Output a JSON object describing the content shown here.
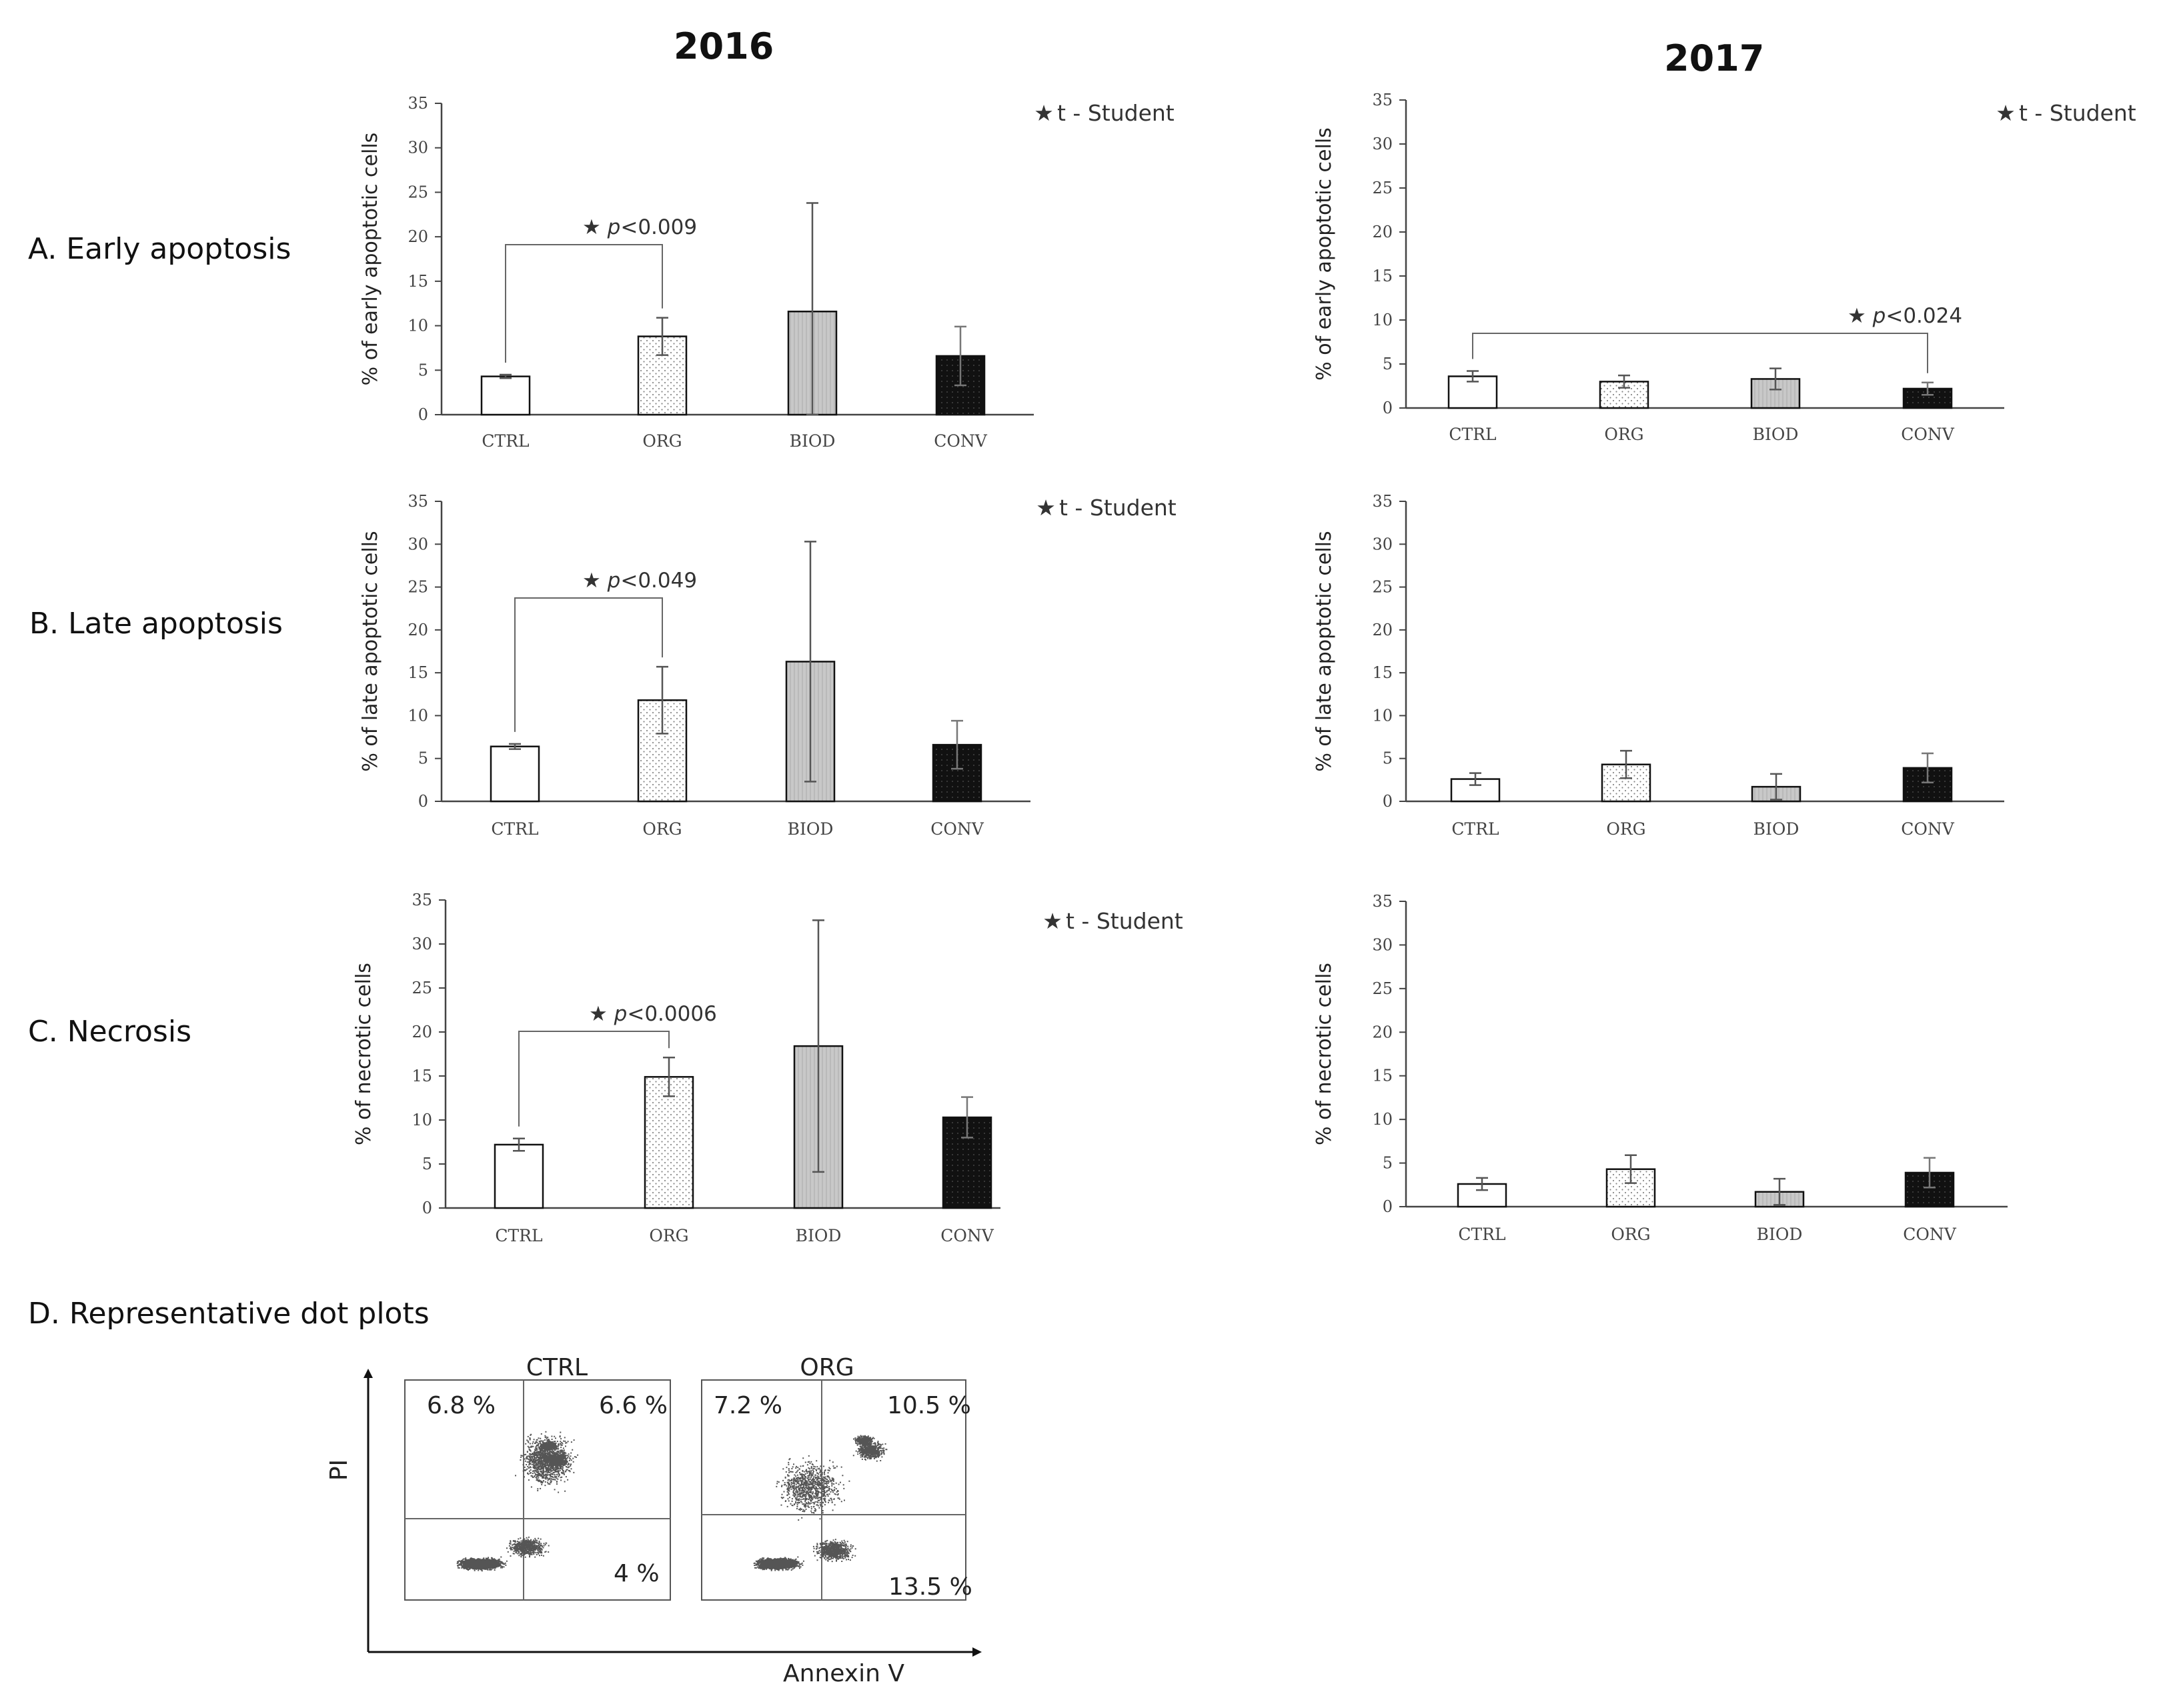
{
  "years": [
    "2016",
    "2017"
  ],
  "row_labels": [
    "A. Early apoptosis",
    "B. Late apoptosis",
    "C. Necrosis",
    "D. Representative  dot plots"
  ],
  "legend": "t - Student",
  "chart_data": [
    {
      "id": "A2016",
      "type": "bar",
      "categories": [
        "CTRL",
        "ORG",
        "BIOD",
        "CONV"
      ],
      "values": [
        4.3,
        8.8,
        11.6,
        6.6
      ],
      "errors": [
        0.2,
        2.1,
        12.2,
        3.3
      ],
      "ylabel": "% of early apoptotic cells",
      "ylim": [
        0,
        35
      ],
      "yticks": [
        0,
        5,
        10,
        15,
        20,
        25,
        30,
        35
      ],
      "annotation": {
        "label": "p",
        "value": "<0.009",
        "from": 0,
        "to": 1
      },
      "legend": "t - Student"
    },
    {
      "id": "A2017",
      "type": "bar",
      "categories": [
        "CTRL",
        "ORG",
        "BIOD",
        "CONV"
      ],
      "values": [
        3.6,
        3.0,
        3.3,
        2.2
      ],
      "errors": [
        0.6,
        0.7,
        1.2,
        0.7
      ],
      "ylabel": "% of early apoptotic cells",
      "ylim": [
        0,
        35
      ],
      "yticks": [
        0,
        5,
        10,
        15,
        20,
        25,
        30,
        35
      ],
      "annotation": {
        "label": "p",
        "value": "<0.024",
        "from": 0,
        "to": 3
      },
      "legend": "t - Student"
    },
    {
      "id": "B2016",
      "type": "bar",
      "categories": [
        "CTRL",
        "ORG",
        "BIOD",
        "CONV"
      ],
      "values": [
        6.4,
        11.8,
        16.3,
        6.6
      ],
      "errors": [
        0.3,
        3.9,
        14.0,
        2.8
      ],
      "ylabel": "% of late apoptotic cells",
      "ylim": [
        0,
        35
      ],
      "yticks": [
        0,
        5,
        10,
        15,
        20,
        25,
        30,
        35
      ],
      "annotation": {
        "label": "p",
        "value": "<0.049",
        "from": 0,
        "to": 1
      },
      "legend": "t - Student"
    },
    {
      "id": "B2017",
      "type": "bar",
      "categories": [
        "CTRL",
        "ORG",
        "BIOD",
        "CONV"
      ],
      "values": [
        2.6,
        4.3,
        1.7,
        3.9
      ],
      "errors": [
        0.7,
        1.6,
        1.5,
        1.7
      ],
      "ylabel": "% of late apoptotic cells",
      "ylim": [
        0,
        35
      ],
      "yticks": [
        0,
        5,
        10,
        15,
        20,
        25,
        30,
        35
      ]
    },
    {
      "id": "C2016",
      "type": "bar",
      "categories": [
        "CTRL",
        "ORG",
        "BIOD",
        "CONV"
      ],
      "values": [
        7.2,
        14.9,
        18.4,
        10.3
      ],
      "errors": [
        0.7,
        2.2,
        14.3,
        2.3
      ],
      "ylabel": "% of necrotic cells",
      "ylim": [
        0,
        35
      ],
      "yticks": [
        0,
        5,
        10,
        15,
        20,
        25,
        30,
        35
      ],
      "annotation": {
        "label": "p",
        "value": "<0.0006",
        "from": 0,
        "to": 1
      },
      "legend": "t - Student"
    },
    {
      "id": "C2017",
      "type": "bar",
      "categories": [
        "CTRL",
        "ORG",
        "BIOD",
        "CONV"
      ],
      "values": [
        2.6,
        4.3,
        1.7,
        3.9
      ],
      "errors": [
        0.7,
        1.6,
        1.5,
        1.7
      ],
      "ylabel": "% of necrotic cells",
      "ylim": [
        0,
        35
      ],
      "yticks": [
        0,
        5,
        10,
        15,
        20,
        25,
        30,
        35
      ]
    }
  ],
  "bar_fills": [
    "white",
    "dots",
    "grey",
    "black"
  ],
  "colors": {
    "axis": "#444444",
    "grey_bar": "#c8c8c8",
    "black_bar": "#111111",
    "dot_fill": "#555555"
  },
  "dot_plots": {
    "y_axis": "PI",
    "x_axis": "Annexin V",
    "plots": [
      {
        "title": "CTRL",
        "q_ul": "6.8 %",
        "q_ur": "6.6 %",
        "q_lr": "4 %"
      },
      {
        "title": "ORG",
        "q_ul": "7.2 %",
        "q_ur": "10.5 %",
        "q_lr": "13.5 %"
      }
    ]
  }
}
